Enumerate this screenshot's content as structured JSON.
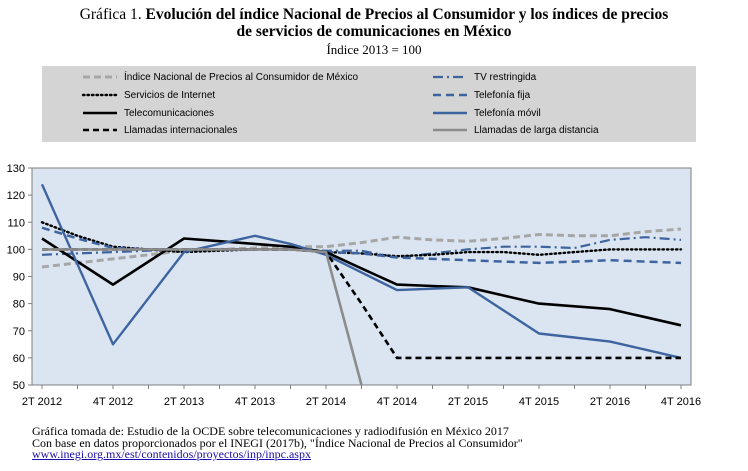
{
  "title": {
    "label": "Gráfica 1.",
    "bold_line1": "Evolución del índice Nacional de Precios al Consumidor y los índices de precios",
    "bold_line2": "de servicios de comunicaciones en México"
  },
  "subtitle": "Índice 2013 = 100",
  "footer": {
    "line1": "Gráfica tomada de: Estudio de la OCDE sobre telecomunicaciones y radiodifusión en México 2017",
    "line2": "Con base en datos proporcionados por el INEGI (2017b), \"Índice Nacional de Precios al Consumidor\"",
    "link": "www.inegi.org.mx/est/contenidos/proyectos/inp/inpc.aspx"
  },
  "chart_data": {
    "type": "line",
    "categories": [
      "2T 2012",
      "3T 2012",
      "4T 2012",
      "1T 2013",
      "2T 2013",
      "3T 2013",
      "4T 2013",
      "1T 2014",
      "2T 2014",
      "3T 2014",
      "4T 2014",
      "1T 2015",
      "2T 2015",
      "3T 2015",
      "4T 2015",
      "1T 2016",
      "2T 2016",
      "3T 2016",
      "4T 2016"
    ],
    "tick_labels": [
      "2T 2012",
      "4T 2012",
      "2T 2013",
      "4T 2013",
      "2T 2014",
      "4T 2014",
      "2T 2015",
      "4T 2015",
      "2T 2016",
      "4T 2016"
    ],
    "ylim": [
      50,
      130
    ],
    "yticks": [
      50,
      60,
      70,
      80,
      90,
      100,
      110,
      120,
      130
    ],
    "grid": false,
    "series": [
      {
        "name": "Índice Nacional de Precios al Consumidor de México",
        "color": "#a6a6a6",
        "style": "dashed-thick",
        "values": [
          93.5,
          95,
          96.5,
          98,
          99.5,
          100,
          100.5,
          101,
          101,
          102.5,
          104.5,
          103.5,
          103,
          104,
          105.5,
          105,
          105,
          106.5,
          107.5
        ]
      },
      {
        "name": "TV restringida",
        "color": "#3e64a0",
        "style": "dash-dot",
        "values": [
          98,
          98.5,
          99,
          99.5,
          100,
          100,
          100,
          100,
          99.5,
          99.5,
          97,
          98.5,
          100,
          101,
          101,
          100.5,
          103.5,
          104.5,
          103.5
        ]
      },
      {
        "name": "Servicios de Internet",
        "color": "#000000",
        "style": "dotted",
        "values": [
          110,
          105,
          101,
          100,
          99,
          99.5,
          100,
          100,
          99,
          98.5,
          97.5,
          98,
          99,
          99,
          98,
          99,
          100,
          100,
          100
        ]
      },
      {
        "name": "Telefonía fija",
        "color": "#3e64a0",
        "style": "dashed",
        "values": [
          108,
          104,
          100.5,
          100,
          100,
          100,
          100,
          100,
          99,
          98.5,
          97,
          96.5,
          96,
          95.5,
          95,
          95.5,
          96,
          95.5,
          95
        ]
      },
      {
        "name": "Telecomunicaciones",
        "color": "#000000",
        "style": "solid-thick",
        "values": [
          104,
          95.5,
          87,
          95.5,
          104,
          103,
          102,
          101,
          99,
          93,
          87,
          86.5,
          86,
          83,
          80,
          79,
          78,
          75,
          72
        ]
      },
      {
        "name": "Telefonía móvil",
        "color": "#3e64a0",
        "style": "solid",
        "values": [
          124,
          94.5,
          65,
          82,
          99,
          102,
          105,
          102,
          98,
          91.5,
          85,
          85.5,
          86,
          77.5,
          69,
          67.5,
          66,
          63,
          60
        ]
      },
      {
        "name": "Llamadas internacionales",
        "color": "#000000",
        "style": "dashed-bold",
        "values": [
          100,
          100,
          100,
          100,
          100,
          100,
          100,
          100,
          99,
          80,
          60,
          60,
          60,
          60,
          60,
          60,
          60,
          60,
          60
        ]
      },
      {
        "name": "Llamadas de larga distancia",
        "color": "#8c8c8c",
        "style": "solid-thick",
        "values": [
          100,
          100,
          100,
          100,
          100,
          100,
          100,
          100,
          99,
          50,
          null,
          null,
          null,
          null,
          null,
          null,
          null,
          null,
          null
        ]
      }
    ]
  }
}
